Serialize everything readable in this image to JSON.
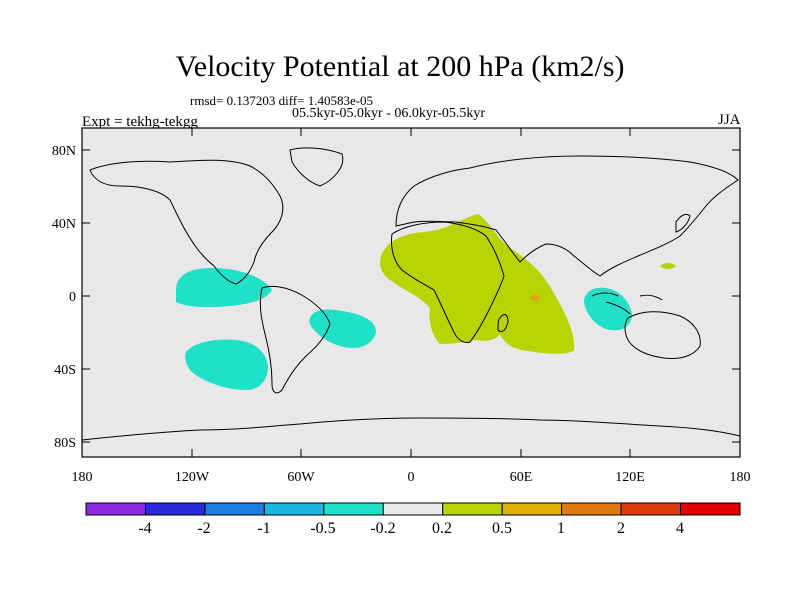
{
  "title": "Velocity Potential at 200 hPa (km2/s)",
  "stats": "rmsd= 0.137203 diff= 1.40583e-05",
  "periods": "05.5kyr-05.0kyr - 06.0kyr-05.5kyr",
  "experiment": "Expt = tekhg-tekgg",
  "season": "JJA",
  "colors": {
    "ocean_land_bg": "#e8e8e8",
    "positive_02_05": "#b8d400",
    "positive_05_1": "#e0a020",
    "negative_02_05": "#20e0c8"
  },
  "map": {
    "lon_ticks": [
      "180",
      "120W",
      "60W",
      "0",
      "60E",
      "120E",
      "180"
    ],
    "lat_ticks": [
      "80N",
      "40N",
      "0",
      "40S",
      "80S"
    ]
  },
  "colorbar": {
    "labels": [
      "-4",
      "-2",
      "-1",
      "-0.5",
      "-0.2",
      "0.2",
      "0.5",
      "1",
      "2",
      "4"
    ],
    "colors": [
      "#8a2be2",
      "#2a2ad8",
      "#1a7fe0",
      "#1ab8e0",
      "#20e0c8",
      "#e8e8e8",
      "#b8d400",
      "#e0b000",
      "#e07a10",
      "#e03a10",
      "#e00000"
    ]
  }
}
